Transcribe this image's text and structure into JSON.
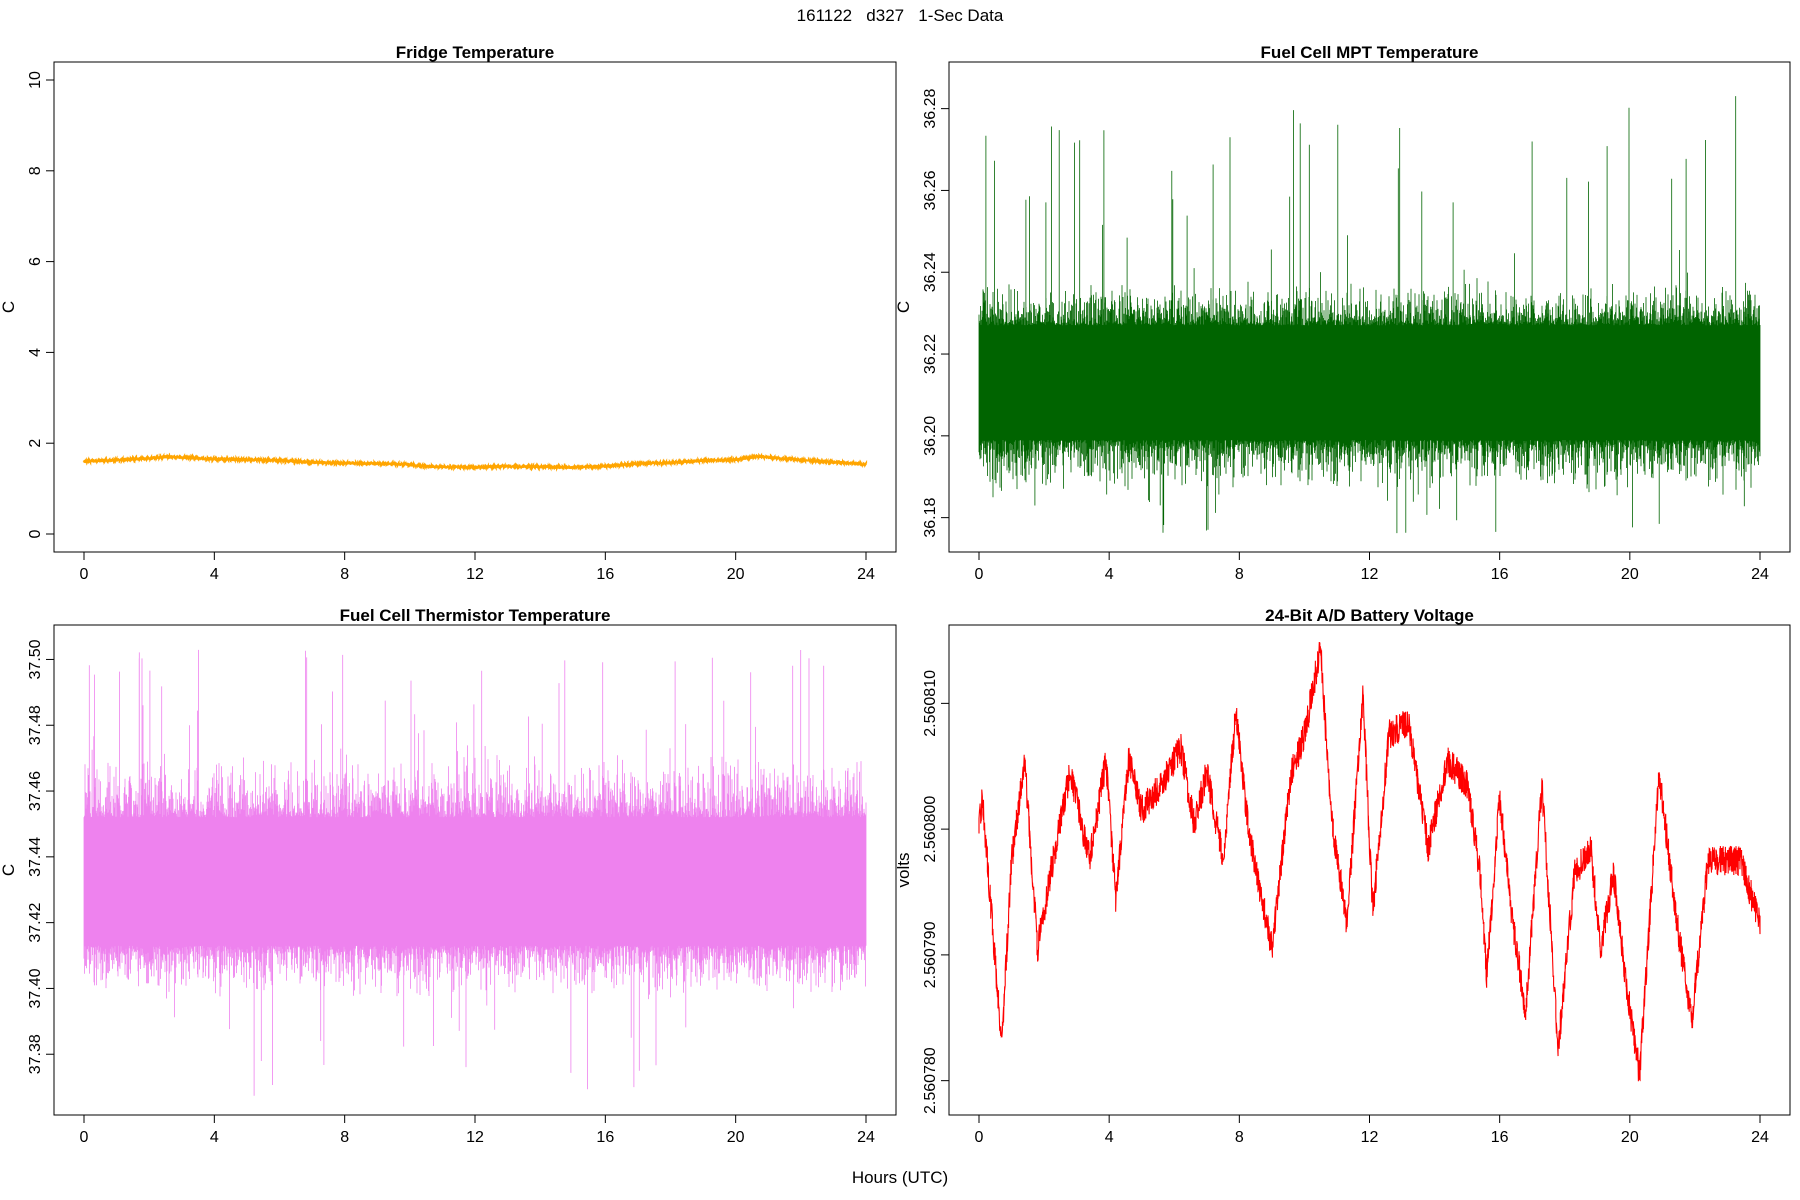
{
  "header": {
    "title": "161122   d327   1-Sec Data"
  },
  "footer": {
    "xlabel": "Hours (UTC)"
  },
  "chart_data": [
    {
      "type": "line",
      "id": "fridge",
      "title": "Fridge Temperature",
      "xlabel": "Hours (UTC)",
      "ylabel": "C",
      "color": "#FFA500",
      "xlim": [
        0,
        24
      ],
      "ylim": [
        0,
        10
      ],
      "xticks": [
        0,
        4,
        8,
        12,
        16,
        20,
        24
      ],
      "xtick_labels": [
        "0",
        "4",
        "8",
        "12",
        "16",
        "20",
        "24"
      ],
      "yticks": [
        0,
        2,
        4,
        6,
        8,
        10
      ],
      "ytick_labels": [
        "0",
        "2",
        "4",
        "6",
        "8",
        "10"
      ],
      "noise": 0.03,
      "x": [
        0,
        1,
        2,
        2.5,
        3,
        4,
        5,
        6,
        7,
        8,
        9,
        10,
        10.5,
        11,
        12,
        13,
        14,
        15,
        16,
        17,
        18,
        19,
        20,
        20.7,
        21,
        22,
        23,
        24
      ],
      "y": [
        1.6,
        1.63,
        1.67,
        1.7,
        1.69,
        1.65,
        1.64,
        1.62,
        1.58,
        1.56,
        1.55,
        1.53,
        1.49,
        1.48,
        1.47,
        1.49,
        1.48,
        1.47,
        1.49,
        1.55,
        1.57,
        1.62,
        1.64,
        1.71,
        1.69,
        1.63,
        1.58,
        1.54
      ]
    },
    {
      "type": "line",
      "id": "mpt",
      "title": "Fuel Cell MPT Temperature",
      "xlabel": "Hours (UTC)",
      "ylabel": "C",
      "color": "#006400",
      "xlim": [
        0,
        24
      ],
      "ylim": [
        36.176,
        36.287
      ],
      "xticks": [
        0,
        4,
        8,
        12,
        16,
        20,
        24
      ],
      "xtick_labels": [
        "0",
        "4",
        "8",
        "12",
        "16",
        "20",
        "24"
      ],
      "yticks": [
        36.18,
        36.2,
        36.22,
        36.24,
        36.26,
        36.28
      ],
      "ytick_labels": [
        "36.18",
        "36.20",
        "36.22",
        "36.24",
        "36.26",
        "36.28"
      ],
      "band": [
        36.199,
        36.227
      ],
      "spread": [
        36.186,
        36.238
      ],
      "extremes": [
        36.176,
        36.284
      ]
    },
    {
      "type": "line",
      "id": "thermistor",
      "title": "Fuel Cell Thermistor Temperature",
      "xlabel": "Hours (UTC)",
      "ylabel": "C",
      "color": "#EE82EE",
      "xlim": [
        0,
        24
      ],
      "ylim": [
        37.367,
        37.505
      ],
      "xticks": [
        0,
        4,
        8,
        12,
        16,
        20,
        24
      ],
      "xtick_labels": [
        "0",
        "4",
        "8",
        "12",
        "16",
        "20",
        "24"
      ],
      "yticks": [
        37.38,
        37.4,
        37.42,
        37.44,
        37.46,
        37.48,
        37.5
      ],
      "ytick_labels": [
        "37.38",
        "37.40",
        "37.42",
        "37.44",
        "37.46",
        "37.48",
        "37.50"
      ],
      "band": [
        37.413,
        37.452
      ],
      "spread": [
        37.396,
        37.472
      ],
      "extremes": [
        37.367,
        37.503
      ]
    },
    {
      "type": "line",
      "id": "battery",
      "title": "24-Bit A/D Battery Voltage",
      "xlabel": "Hours (UTC)",
      "ylabel": "volts",
      "color": "#FF0000",
      "xlim": [
        0,
        24
      ],
      "ylim": [
        2.5607787,
        2.5608148
      ],
      "xticks": [
        0,
        4,
        8,
        12,
        16,
        20,
        24
      ],
      "xtick_labels": [
        "0",
        "4",
        "8",
        "12",
        "16",
        "20",
        "24"
      ],
      "yticks": [
        2.56078,
        2.56079,
        2.5608,
        2.56081
      ],
      "ytick_labels": [
        "2.560780",
        "2.560790",
        "2.560800",
        "2.560810"
      ],
      "noise": 1.5e-06,
      "x": [
        0,
        0.1,
        0.7,
        1.0,
        1.4,
        1.8,
        2.2,
        2.8,
        3.4,
        3.9,
        4.2,
        4.6,
        5.0,
        5.6,
        6.2,
        6.6,
        7.0,
        7.5,
        7.9,
        8.3,
        9.0,
        9.6,
        10.0,
        10.5,
        10.8,
        11.3,
        11.8,
        12.1,
        12.6,
        13.2,
        13.8,
        14.4,
        15.0,
        15.4,
        15.6,
        16.0,
        16.4,
        16.8,
        17.3,
        17.8,
        18.3,
        18.8,
        19.1,
        19.5,
        19.9,
        20.3,
        20.9,
        21.4,
        21.9,
        22.4,
        23.0,
        23.4,
        24.0
      ],
      "y": [
        2.5608,
        2.5608025,
        2.560783,
        2.5607975,
        2.5608055,
        2.5607905,
        2.5607965,
        2.5608045,
        2.5607975,
        2.5608055,
        2.5607945,
        2.5608055,
        2.5608015,
        2.5608035,
        2.5608065,
        2.5608005,
        2.5608045,
        2.5607975,
        2.5608095,
        2.5607995,
        2.5607905,
        2.5608045,
        2.5608075,
        2.5608145,
        2.5608015,
        2.5607925,
        2.5608105,
        2.5607935,
        2.5608075,
        2.5608085,
        2.5607985,
        2.5608055,
        2.5608035,
        2.5607965,
        2.5607885,
        2.5608025,
        2.5607925,
        2.5607855,
        2.5608035,
        2.5607825,
        2.5607965,
        2.5607985,
        2.5607905,
        2.5607965,
        2.5607875,
        2.5607805,
        2.5608045,
        2.5607935,
        2.5607845,
        2.5607975,
        2.5607975,
        2.5607975,
        2.5607925
      ]
    }
  ]
}
